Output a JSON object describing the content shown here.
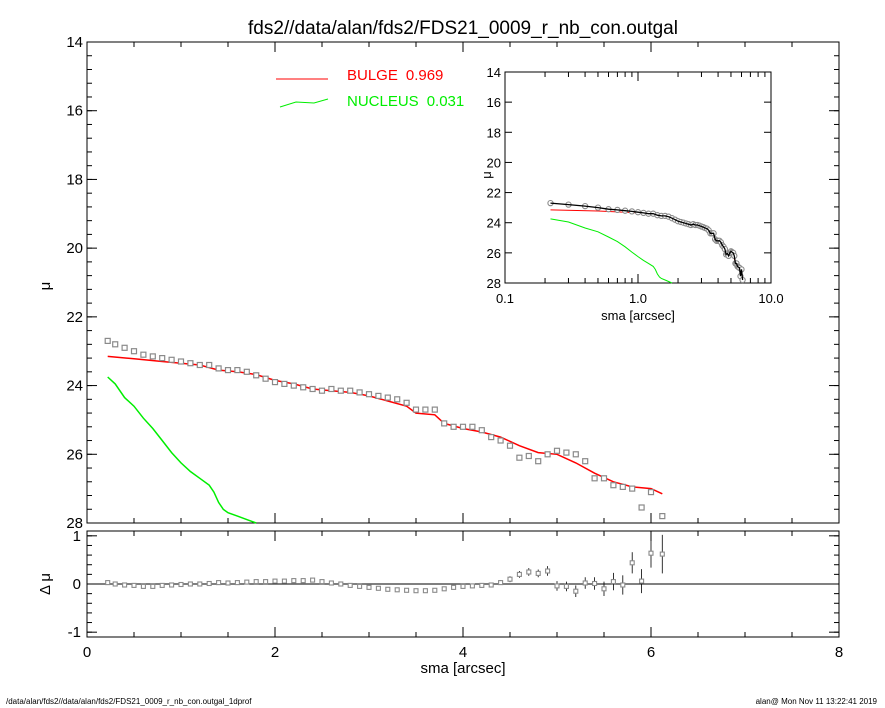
{
  "title": "fds2//data/alan/fds2/FDS21_0009_r_nb_con.outgal",
  "footer": {
    "left": "/data/alan/fds2//data/alan/fds2/FDS21_0009_r_nb_con.outgal_1dprof",
    "right": "alan@  Mon Nov 11 13:22:41 2019"
  },
  "colors": {
    "bulge": "#ff0000",
    "nucleus": "#00ee00",
    "data": "#000000",
    "points": "#8a8a8a"
  },
  "chart_data": [
    {
      "type": "scatter",
      "panel": "main profile",
      "xlabel": "sma [arcsec]",
      "ylabel": "μ",
      "xlim": [
        0,
        8
      ],
      "ylim": [
        28,
        14
      ],
      "yticks": [
        "14",
        "16",
        "18",
        "20",
        "22",
        "24",
        "26",
        "28"
      ],
      "legend": [
        {
          "name": "BULGE",
          "value": "0.969",
          "color": "#ff0000"
        },
        {
          "name": "NUCLEUS",
          "value": "0.031",
          "color": "#00ee00"
        }
      ],
      "legend_position": "top-center",
      "series": [
        {
          "name": "data",
          "style": "open squares",
          "x": [
            0.22,
            0.3,
            0.4,
            0.5,
            0.6,
            0.7,
            0.8,
            0.9,
            1.0,
            1.1,
            1.2,
            1.3,
            1.4,
            1.5,
            1.6,
            1.7,
            1.8,
            1.9,
            2.0,
            2.1,
            2.2,
            2.3,
            2.4,
            2.5,
            2.6,
            2.7,
            2.8,
            2.9,
            3.0,
            3.1,
            3.2,
            3.3,
            3.4,
            3.5,
            3.6,
            3.7,
            3.8,
            3.9,
            4.0,
            4.1,
            4.2,
            4.3,
            4.4,
            4.5,
            4.6,
            4.7,
            4.8,
            4.9,
            5.0,
            5.1,
            5.2,
            5.3,
            5.4,
            5.5,
            5.6,
            5.7,
            5.8,
            5.9,
            6.0,
            6.12
          ],
          "y": [
            22.7,
            22.8,
            22.9,
            23.0,
            23.1,
            23.15,
            23.2,
            23.25,
            23.3,
            23.35,
            23.4,
            23.4,
            23.5,
            23.55,
            23.55,
            23.6,
            23.7,
            23.8,
            23.9,
            23.95,
            24.0,
            24.05,
            24.1,
            24.15,
            24.1,
            24.15,
            24.15,
            24.2,
            24.25,
            24.3,
            24.35,
            24.4,
            24.5,
            24.7,
            24.7,
            24.7,
            25.1,
            25.2,
            25.2,
            25.2,
            25.3,
            25.5,
            25.6,
            25.75,
            26.1,
            26.05,
            26.2,
            26.0,
            25.9,
            25.95,
            26.0,
            26.2,
            26.7,
            26.7,
            26.9,
            26.95,
            27.0,
            27.55,
            27.1,
            27.8
          ]
        },
        {
          "name": "BULGE",
          "style": "line",
          "x": [
            0.22,
            0.5,
            0.8,
            1.0,
            1.2,
            1.4,
            1.6,
            1.8,
            2.0,
            2.2,
            2.4,
            2.6,
            2.8,
            3.0,
            3.2,
            3.4,
            3.5,
            3.7,
            3.8,
            4.0,
            4.2,
            4.4,
            4.6,
            4.8,
            5.0,
            5.2,
            5.4,
            5.6,
            5.8,
            6.0,
            6.12
          ],
          "y": [
            23.15,
            23.22,
            23.3,
            23.35,
            23.4,
            23.55,
            23.6,
            23.68,
            23.85,
            23.95,
            24.1,
            24.15,
            24.2,
            24.3,
            24.45,
            24.6,
            24.8,
            24.85,
            25.1,
            25.25,
            25.35,
            25.5,
            25.75,
            25.95,
            26.0,
            26.25,
            26.55,
            26.8,
            26.95,
            27.0,
            27.15
          ]
        },
        {
          "name": "NUCLEUS",
          "style": "line",
          "x": [
            0.22,
            0.3,
            0.4,
            0.5,
            0.6,
            0.7,
            0.8,
            0.9,
            1.0,
            1.1,
            1.2,
            1.3,
            1.35,
            1.4,
            1.45,
            1.5,
            1.6,
            1.7,
            1.8
          ],
          "y": [
            23.75,
            23.95,
            24.35,
            24.6,
            24.95,
            25.25,
            25.6,
            25.95,
            26.25,
            26.5,
            26.7,
            26.9,
            27.1,
            27.4,
            27.6,
            27.7,
            27.8,
            27.9,
            28.05
          ]
        }
      ]
    },
    {
      "type": "scatter",
      "panel": "residuals",
      "xlabel": "sma [arcsec]",
      "ylabel": "Δ μ",
      "xlim": [
        0,
        8
      ],
      "ylim": [
        -1.1,
        1.1
      ],
      "xticks": [
        "0",
        "2",
        "4",
        "6",
        "8"
      ],
      "yticks": [
        "1",
        "0",
        "-1"
      ],
      "series": [
        {
          "name": "residual",
          "style": "open squares with error bars",
          "x": [
            0.22,
            0.3,
            0.4,
            0.5,
            0.6,
            0.7,
            0.8,
            0.9,
            1.0,
            1.1,
            1.2,
            1.3,
            1.4,
            1.5,
            1.6,
            1.7,
            1.8,
            1.9,
            2.0,
            2.1,
            2.2,
            2.3,
            2.4,
            2.5,
            2.6,
            2.7,
            2.8,
            2.9,
            3.0,
            3.1,
            3.2,
            3.3,
            3.4,
            3.5,
            3.6,
            3.7,
            3.8,
            3.9,
            4.0,
            4.1,
            4.2,
            4.3,
            4.4,
            4.5,
            4.6,
            4.7,
            4.8,
            4.9,
            5.0,
            5.1,
            5.2,
            5.3,
            5.4,
            5.5,
            5.6,
            5.7,
            5.8,
            5.9,
            6.0,
            6.12
          ],
          "y": [
            0.03,
            0.0,
            -0.02,
            -0.03,
            -0.05,
            -0.05,
            -0.03,
            -0.02,
            -0.01,
            0.0,
            0.0,
            0.01,
            0.03,
            0.02,
            0.03,
            0.04,
            0.05,
            0.05,
            0.06,
            0.06,
            0.07,
            0.07,
            0.08,
            0.05,
            0.02,
            0.0,
            -0.03,
            -0.05,
            -0.07,
            -0.09,
            -0.11,
            -0.12,
            -0.13,
            -0.14,
            -0.14,
            -0.13,
            -0.1,
            -0.07,
            -0.05,
            -0.04,
            -0.03,
            -0.02,
            0.03,
            0.1,
            0.2,
            0.25,
            0.22,
            0.27,
            -0.04,
            -0.05,
            -0.15,
            0.02,
            0.01,
            -0.1,
            0.05,
            -0.02,
            0.44,
            0.06,
            0.64,
            0.62
          ],
          "err": [
            0.01,
            0.01,
            0.01,
            0.01,
            0.01,
            0.01,
            0.01,
            0.01,
            0.01,
            0.01,
            0.01,
            0.01,
            0.01,
            0.01,
            0.01,
            0.01,
            0.01,
            0.01,
            0.01,
            0.01,
            0.01,
            0.01,
            0.01,
            0.01,
            0.01,
            0.01,
            0.01,
            0.01,
            0.01,
            0.01,
            0.01,
            0.01,
            0.01,
            0.01,
            0.01,
            0.01,
            0.02,
            0.02,
            0.03,
            0.03,
            0.04,
            0.05,
            0.05,
            0.06,
            0.07,
            0.08,
            0.08,
            0.1,
            0.1,
            0.1,
            0.12,
            0.12,
            0.13,
            0.15,
            0.18,
            0.2,
            0.22,
            0.25,
            0.3,
            0.4
          ]
        }
      ]
    },
    {
      "type": "line",
      "panel": "inset log profile",
      "xlabel": "sma [arcsec]",
      "ylabel": "μ",
      "xscale": "log",
      "xlim": [
        0.1,
        10
      ],
      "ylim": [
        28,
        14
      ],
      "xticks": [
        "0.1",
        "1.0",
        "10.0"
      ],
      "yticks": [
        "14",
        "16",
        "18",
        "20",
        "22",
        "24",
        "26",
        "28"
      ],
      "series": [
        {
          "name": "data",
          "style": "circles with black line",
          "ref": "main profile data"
        },
        {
          "name": "BULGE",
          "style": "line",
          "ref": "main profile BULGE"
        },
        {
          "name": "NUCLEUS",
          "style": "line",
          "ref": "main profile NUCLEUS"
        }
      ]
    }
  ]
}
